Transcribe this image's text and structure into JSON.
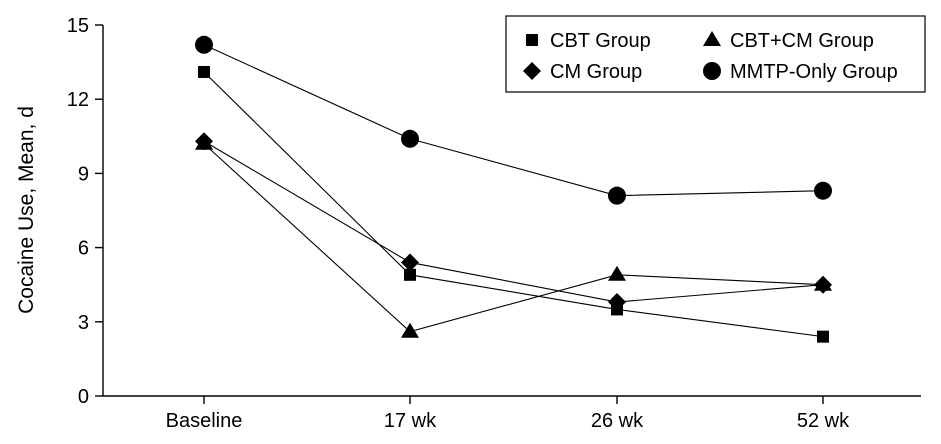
{
  "chart_data": {
    "type": "line",
    "title": "",
    "xlabel": "",
    "ylabel": "Cocaine Use, Mean, d",
    "ylim": [
      0,
      15
    ],
    "yticks": [
      0,
      3,
      6,
      9,
      12,
      15
    ],
    "categories": [
      "Baseline",
      "17 wk",
      "26 wk",
      "52 wk"
    ],
    "grid": false,
    "legend_position": "top-right",
    "series": [
      {
        "name": "CBT Group",
        "marker": "square",
        "values": [
          13.1,
          4.9,
          3.5,
          2.4
        ]
      },
      {
        "name": "CM Group",
        "marker": "diamond",
        "values": [
          10.3,
          5.4,
          3.8,
          4.5
        ]
      },
      {
        "name": "CBT+CM Group",
        "marker": "triangle",
        "values": [
          10.2,
          2.6,
          4.9,
          4.5
        ]
      },
      {
        "name": "MMTP-Only Group",
        "marker": "circle",
        "values": [
          14.2,
          10.4,
          8.1,
          8.3
        ]
      }
    ]
  }
}
